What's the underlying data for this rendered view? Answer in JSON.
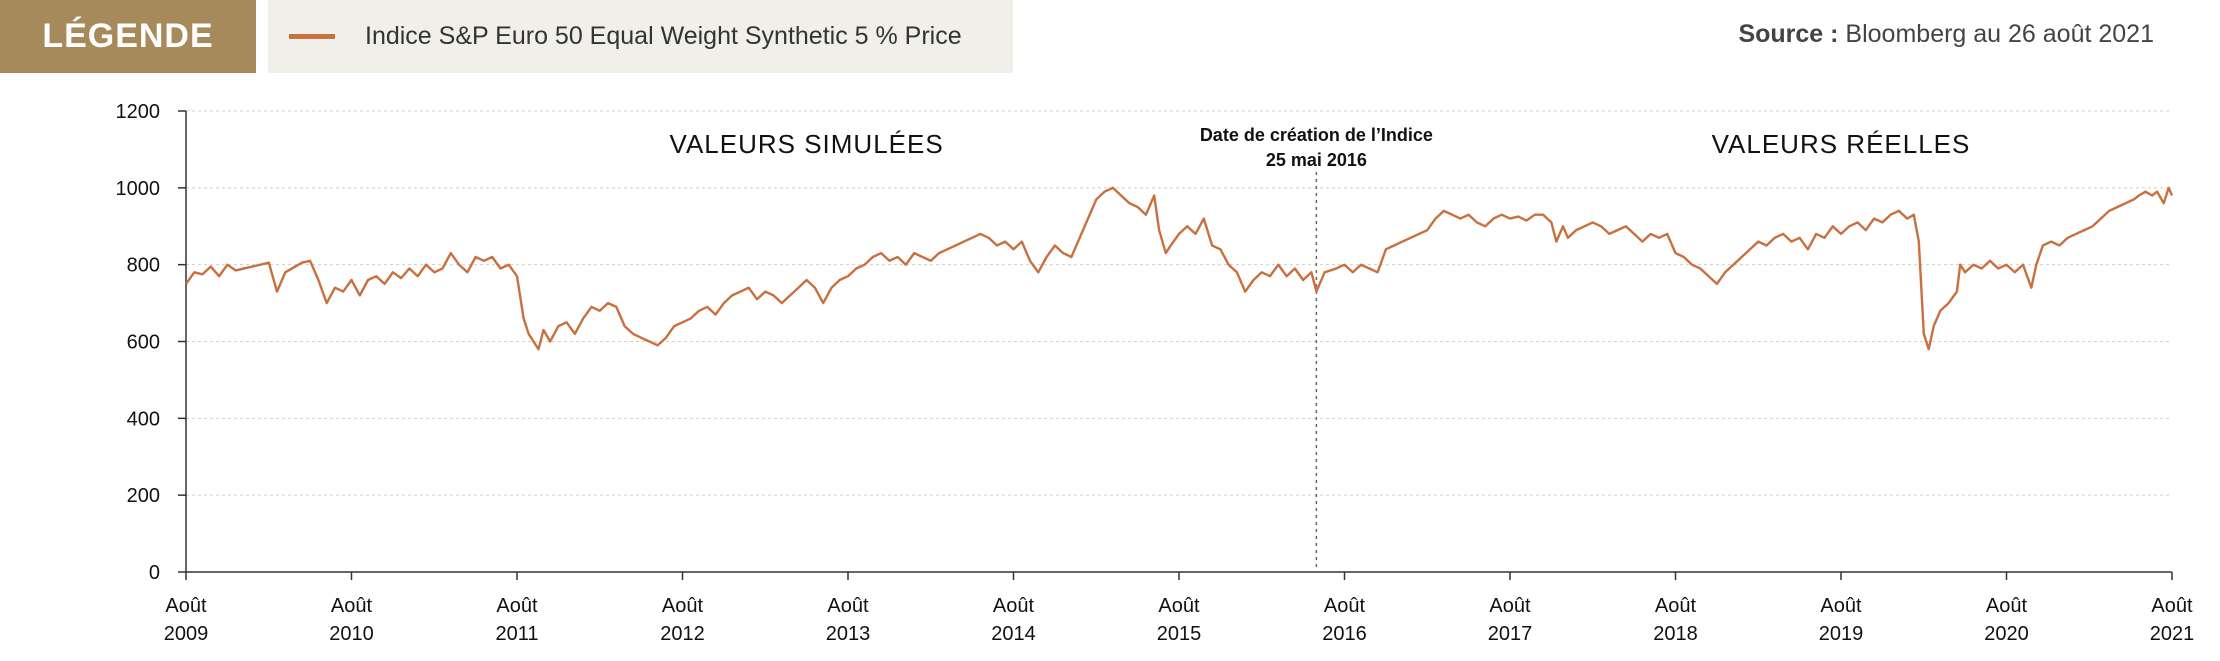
{
  "legend": {
    "tag_label": "LÉGENDE",
    "series_label": "Indice S&P Euro 50 Equal Weight Synthetic 5 % Price"
  },
  "source": {
    "label": "Source :",
    "text": "Bloomberg au 26 août 2021"
  },
  "colors": {
    "line": "#c8703f",
    "legend_tag_bg": "#a68a5b",
    "legend_box_bg": "#f1efe9",
    "grid": "#cfcfcf"
  },
  "chart_data": {
    "type": "line",
    "title": "",
    "ylim": [
      0,
      1200
    ],
    "y_ticks": [
      "0",
      "200",
      "400",
      "600",
      "800",
      "1000",
      "1200"
    ],
    "xlim": [
      2009.0,
      2021.0
    ],
    "x_ticks": [
      {
        "year": 2009,
        "line1": "Août",
        "line2": "2009"
      },
      {
        "year": 2010,
        "line1": "Août",
        "line2": "2010"
      },
      {
        "year": 2011,
        "line1": "Août",
        "line2": "2011"
      },
      {
        "year": 2012,
        "line1": "Août",
        "line2": "2012"
      },
      {
        "year": 2013,
        "line1": "Août",
        "line2": "2013"
      },
      {
        "year": 2014,
        "line1": "Août",
        "line2": "2014"
      },
      {
        "year": 2015,
        "line1": "Août",
        "line2": "2015"
      },
      {
        "year": 2016,
        "line1": "Août",
        "line2": "2016"
      },
      {
        "year": 2017,
        "line1": "Août",
        "line2": "2017"
      },
      {
        "year": 2018,
        "line1": "Août",
        "line2": "2018"
      },
      {
        "year": 2019,
        "line1": "Août",
        "line2": "2019"
      },
      {
        "year": 2020,
        "line1": "Août",
        "line2": "2020"
      },
      {
        "year": 2021,
        "line1": "Août",
        "line2": "2021"
      }
    ],
    "grid": true,
    "annotations": {
      "simulated_label": "VALEURS SIMULÉES",
      "real_label": "VALEURS RÉELLES",
      "creation_line1": "Date de création de l’Indice",
      "creation_line2": "25 mai 2016",
      "creation_x": 2015.83
    },
    "series": [
      {
        "name": "Indice S&P Euro 50 Equal Weight Synthetic 5 % Price",
        "points": [
          [
            2009.0,
            750
          ],
          [
            2009.05,
            780
          ],
          [
            2009.1,
            775
          ],
          [
            2009.15,
            795
          ],
          [
            2009.2,
            770
          ],
          [
            2009.25,
            800
          ],
          [
            2009.3,
            785
          ],
          [
            2009.4,
            795
          ],
          [
            2009.5,
            805
          ],
          [
            2009.55,
            730
          ],
          [
            2009.6,
            780
          ],
          [
            2009.7,
            805
          ],
          [
            2009.75,
            810
          ],
          [
            2009.8,
            760
          ],
          [
            2009.85,
            700
          ],
          [
            2009.9,
            740
          ],
          [
            2009.95,
            730
          ],
          [
            2010.0,
            760
          ],
          [
            2010.05,
            720
          ],
          [
            2010.1,
            760
          ],
          [
            2010.15,
            770
          ],
          [
            2010.2,
            750
          ],
          [
            2010.25,
            780
          ],
          [
            2010.3,
            765
          ],
          [
            2010.35,
            790
          ],
          [
            2010.4,
            770
          ],
          [
            2010.45,
            800
          ],
          [
            2010.5,
            780
          ],
          [
            2010.55,
            790
          ],
          [
            2010.6,
            830
          ],
          [
            2010.65,
            800
          ],
          [
            2010.7,
            780
          ],
          [
            2010.75,
            820
          ],
          [
            2010.8,
            810
          ],
          [
            2010.85,
            820
          ],
          [
            2010.9,
            790
          ],
          [
            2010.95,
            800
          ],
          [
            2011.0,
            770
          ],
          [
            2011.04,
            660
          ],
          [
            2011.07,
            620
          ],
          [
            2011.1,
            600
          ],
          [
            2011.13,
            580
          ],
          [
            2011.16,
            630
          ],
          [
            2011.2,
            600
          ],
          [
            2011.25,
            640
          ],
          [
            2011.3,
            650
          ],
          [
            2011.35,
            620
          ],
          [
            2011.4,
            660
          ],
          [
            2011.45,
            690
          ],
          [
            2011.5,
            680
          ],
          [
            2011.55,
            700
          ],
          [
            2011.6,
            690
          ],
          [
            2011.65,
            640
          ],
          [
            2011.7,
            620
          ],
          [
            2011.75,
            610
          ],
          [
            2011.8,
            600
          ],
          [
            2011.85,
            590
          ],
          [
            2011.9,
            610
          ],
          [
            2011.95,
            640
          ],
          [
            2012.0,
            650
          ],
          [
            2012.05,
            660
          ],
          [
            2012.1,
            680
          ],
          [
            2012.15,
            690
          ],
          [
            2012.2,
            670
          ],
          [
            2012.25,
            700
          ],
          [
            2012.3,
            720
          ],
          [
            2012.35,
            730
          ],
          [
            2012.4,
            740
          ],
          [
            2012.45,
            710
          ],
          [
            2012.5,
            730
          ],
          [
            2012.55,
            720
          ],
          [
            2012.6,
            700
          ],
          [
            2012.65,
            720
          ],
          [
            2012.7,
            740
          ],
          [
            2012.75,
            760
          ],
          [
            2012.8,
            740
          ],
          [
            2012.85,
            700
          ],
          [
            2012.9,
            740
          ],
          [
            2012.95,
            760
          ],
          [
            2013.0,
            770
          ],
          [
            2013.05,
            790
          ],
          [
            2013.1,
            800
          ],
          [
            2013.15,
            820
          ],
          [
            2013.2,
            830
          ],
          [
            2013.25,
            810
          ],
          [
            2013.3,
            820
          ],
          [
            2013.35,
            800
          ],
          [
            2013.4,
            830
          ],
          [
            2013.45,
            820
          ],
          [
            2013.5,
            810
          ],
          [
            2013.55,
            830
          ],
          [
            2013.6,
            840
          ],
          [
            2013.65,
            850
          ],
          [
            2013.7,
            860
          ],
          [
            2013.75,
            870
          ],
          [
            2013.8,
            880
          ],
          [
            2013.85,
            870
          ],
          [
            2013.9,
            850
          ],
          [
            2013.95,
            860
          ],
          [
            2014.0,
            840
          ],
          [
            2014.05,
            860
          ],
          [
            2014.1,
            810
          ],
          [
            2014.15,
            780
          ],
          [
            2014.2,
            820
          ],
          [
            2014.25,
            850
          ],
          [
            2014.3,
            830
          ],
          [
            2014.35,
            820
          ],
          [
            2014.4,
            870
          ],
          [
            2014.45,
            920
          ],
          [
            2014.5,
            970
          ],
          [
            2014.55,
            990
          ],
          [
            2014.6,
            1000
          ],
          [
            2014.65,
            980
          ],
          [
            2014.7,
            960
          ],
          [
            2014.75,
            950
          ],
          [
            2014.8,
            930
          ],
          [
            2014.85,
            980
          ],
          [
            2014.88,
            890
          ],
          [
            2014.92,
            830
          ],
          [
            2014.95,
            850
          ],
          [
            2015.0,
            880
          ],
          [
            2015.05,
            900
          ],
          [
            2015.1,
            880
          ],
          [
            2015.15,
            920
          ],
          [
            2015.2,
            850
          ],
          [
            2015.25,
            840
          ],
          [
            2015.3,
            800
          ],
          [
            2015.35,
            780
          ],
          [
            2015.4,
            730
          ],
          [
            2015.45,
            760
          ],
          [
            2015.5,
            780
          ],
          [
            2015.55,
            770
          ],
          [
            2015.6,
            800
          ],
          [
            2015.65,
            770
          ],
          [
            2015.7,
            790
          ],
          [
            2015.75,
            760
          ],
          [
            2015.8,
            780
          ],
          [
            2015.83,
            730
          ],
          [
            2015.88,
            780
          ],
          [
            2015.95,
            790
          ],
          [
            2016.0,
            800
          ],
          [
            2016.05,
            780
          ],
          [
            2016.1,
            800
          ],
          [
            2016.15,
            790
          ],
          [
            2016.2,
            780
          ],
          [
            2016.25,
            840
          ],
          [
            2016.3,
            850
          ],
          [
            2016.35,
            860
          ],
          [
            2016.4,
            870
          ],
          [
            2016.45,
            880
          ],
          [
            2016.5,
            890
          ],
          [
            2016.55,
            920
          ],
          [
            2016.6,
            940
          ],
          [
            2016.65,
            930
          ],
          [
            2016.7,
            920
          ],
          [
            2016.75,
            930
          ],
          [
            2016.8,
            910
          ],
          [
            2016.85,
            900
          ],
          [
            2016.9,
            920
          ],
          [
            2016.95,
            930
          ],
          [
            2017.0,
            920
          ],
          [
            2017.05,
            925
          ],
          [
            2017.1,
            915
          ],
          [
            2017.15,
            930
          ],
          [
            2017.2,
            930
          ],
          [
            2017.25,
            910
          ],
          [
            2017.28,
            860
          ],
          [
            2017.32,
            900
          ],
          [
            2017.35,
            870
          ],
          [
            2017.4,
            890
          ],
          [
            2017.45,
            900
          ],
          [
            2017.5,
            910
          ],
          [
            2017.55,
            900
          ],
          [
            2017.6,
            880
          ],
          [
            2017.65,
            890
          ],
          [
            2017.7,
            900
          ],
          [
            2017.75,
            880
          ],
          [
            2017.8,
            860
          ],
          [
            2017.85,
            880
          ],
          [
            2017.9,
            870
          ],
          [
            2017.95,
            880
          ],
          [
            2018.0,
            830
          ],
          [
            2018.05,
            820
          ],
          [
            2018.1,
            800
          ],
          [
            2018.15,
            790
          ],
          [
            2018.2,
            770
          ],
          [
            2018.25,
            750
          ],
          [
            2018.3,
            780
          ],
          [
            2018.35,
            800
          ],
          [
            2018.4,
            820
          ],
          [
            2018.45,
            840
          ],
          [
            2018.5,
            860
          ],
          [
            2018.55,
            850
          ],
          [
            2018.6,
            870
          ],
          [
            2018.65,
            880
          ],
          [
            2018.7,
            860
          ],
          [
            2018.75,
            870
          ],
          [
            2018.8,
            840
          ],
          [
            2018.85,
            880
          ],
          [
            2018.9,
            870
          ],
          [
            2018.95,
            900
          ],
          [
            2019.0,
            880
          ],
          [
            2019.05,
            900
          ],
          [
            2019.1,
            910
          ],
          [
            2019.15,
            890
          ],
          [
            2019.2,
            920
          ],
          [
            2019.25,
            910
          ],
          [
            2019.3,
            930
          ],
          [
            2019.35,
            940
          ],
          [
            2019.4,
            920
          ],
          [
            2019.44,
            930
          ],
          [
            2019.47,
            860
          ],
          [
            2019.5,
            620
          ],
          [
            2019.53,
            580
          ],
          [
            2019.56,
            640
          ],
          [
            2019.6,
            680
          ],
          [
            2019.65,
            700
          ],
          [
            2019.7,
            730
          ],
          [
            2019.72,
            800
          ],
          [
            2019.75,
            780
          ],
          [
            2019.8,
            800
          ],
          [
            2019.85,
            790
          ],
          [
            2019.9,
            810
          ],
          [
            2019.95,
            790
          ],
          [
            2020.0,
            800
          ],
          [
            2020.05,
            780
          ],
          [
            2020.1,
            800
          ],
          [
            2020.15,
            740
          ],
          [
            2020.18,
            800
          ],
          [
            2020.22,
            850
          ],
          [
            2020.27,
            860
          ],
          [
            2020.32,
            850
          ],
          [
            2020.37,
            870
          ],
          [
            2020.42,
            880
          ],
          [
            2020.47,
            890
          ],
          [
            2020.52,
            900
          ],
          [
            2020.57,
            920
          ],
          [
            2020.62,
            940
          ],
          [
            2020.67,
            950
          ],
          [
            2020.72,
            960
          ],
          [
            2020.77,
            970
          ],
          [
            2020.8,
            980
          ],
          [
            2020.84,
            990
          ],
          [
            2020.88,
            980
          ],
          [
            2020.91,
            990
          ],
          [
            2020.95,
            960
          ],
          [
            2020.98,
            1000
          ],
          [
            2021.0,
            980
          ]
        ]
      }
    ]
  }
}
